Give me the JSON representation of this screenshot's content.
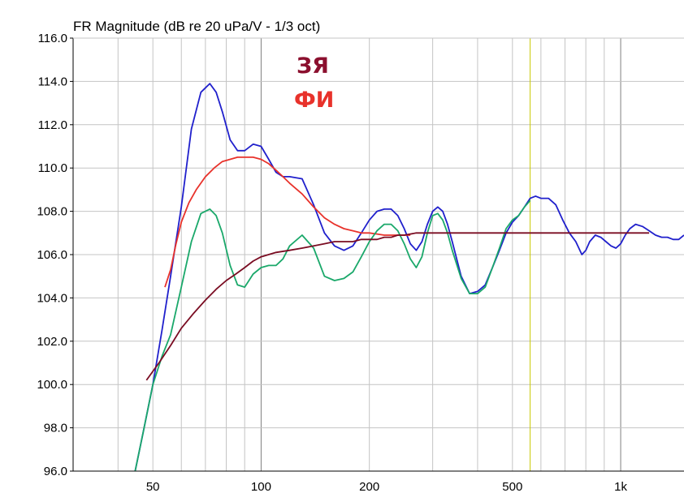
{
  "chart_data": {
    "type": "line",
    "title": "FR Magnitude (dB re 20 uPa/V - 1/3 oct)",
    "xscale": "log",
    "xlim": [
      30,
      1500
    ],
    "ylim": [
      96,
      116
    ],
    "yticks": [
      "116.0",
      "114.0",
      "112.0",
      "110.0",
      "108.0",
      "106.0",
      "104.0",
      "102.0",
      "100.0",
      "98.0",
      "96.0"
    ],
    "xticks": [
      {
        "value": 50,
        "label": "50"
      },
      {
        "value": 100,
        "label": "100"
      },
      {
        "value": 200,
        "label": "200"
      },
      {
        "value": 500,
        "label": "500"
      },
      {
        "value": 1000,
        "label": "1k"
      }
    ],
    "grid": true,
    "marker_line": {
      "x": 560,
      "color": "#c8c800"
    },
    "annotations": [
      {
        "text": "ЗЯ",
        "color": "#8b0f2e"
      },
      {
        "text": "ФИ",
        "color": "#e8322b"
      }
    ],
    "series": [
      {
        "color": "#2020cc",
        "x": [
          44,
          47,
          50,
          53,
          56,
          60,
          64,
          68,
          72,
          75,
          78,
          82,
          86,
          90,
          95,
          100,
          105,
          110,
          115,
          120,
          130,
          140,
          150,
          160,
          170,
          180,
          190,
          200,
          210,
          220,
          230,
          240,
          250,
          260,
          270,
          280,
          290,
          300,
          310,
          320,
          330,
          340,
          360,
          380,
          400,
          420,
          440,
          460,
          480,
          500,
          520,
          540,
          560,
          580,
          600,
          630,
          660,
          690,
          720,
          750,
          780,
          800,
          820,
          850,
          880,
          910,
          940,
          970,
          1000,
          1030,
          1060,
          1100,
          1150,
          1200,
          1250,
          1300,
          1350,
          1400,
          1450,
          1500
        ],
        "y": [
          95.5,
          97.8,
          100.0,
          102.5,
          105.0,
          108.2,
          111.8,
          113.5,
          113.9,
          113.5,
          112.6,
          111.3,
          110.8,
          110.8,
          111.1,
          111.0,
          110.4,
          109.8,
          109.6,
          109.6,
          109.5,
          108.3,
          107.0,
          106.4,
          106.2,
          106.4,
          107.0,
          107.6,
          108.0,
          108.1,
          108.1,
          107.8,
          107.2,
          106.5,
          106.2,
          106.6,
          107.4,
          108.0,
          108.2,
          108.0,
          107.4,
          106.6,
          105.0,
          104.2,
          104.3,
          104.6,
          105.4,
          106.2,
          107.0,
          107.5,
          107.8,
          108.2,
          108.6,
          108.7,
          108.6,
          108.6,
          108.3,
          107.6,
          107.0,
          106.6,
          106.0,
          106.2,
          106.6,
          106.9,
          106.8,
          106.6,
          106.4,
          106.3,
          106.5,
          106.9,
          107.2,
          107.4,
          107.3,
          107.1,
          106.9,
          106.8,
          106.8,
          106.7,
          106.7,
          106.9
        ]
      },
      {
        "color": "#e8322b",
        "x": [
          54,
          56,
          58,
          60,
          63,
          66,
          70,
          74,
          78,
          82,
          86,
          90,
          95,
          100,
          105,
          110,
          115,
          120,
          130,
          140,
          150,
          160,
          170,
          180,
          190,
          200,
          210,
          220,
          230,
          240,
          250,
          260
        ],
        "y": [
          104.5,
          105.3,
          106.5,
          107.5,
          108.4,
          109.0,
          109.6,
          110.0,
          110.3,
          110.4,
          110.5,
          110.5,
          110.5,
          110.4,
          110.2,
          109.9,
          109.6,
          109.3,
          108.8,
          108.2,
          107.7,
          107.4,
          107.2,
          107.1,
          107.0,
          107.0,
          106.95,
          106.9,
          106.9,
          106.9,
          106.9,
          106.9
        ]
      },
      {
        "color": "#1aa86a",
        "x": [
          44,
          47,
          50,
          53,
          56,
          60,
          64,
          68,
          72,
          75,
          78,
          82,
          86,
          90,
          95,
          100,
          105,
          110,
          115,
          120,
          130,
          140,
          150,
          160,
          170,
          180,
          190,
          200,
          210,
          220,
          230,
          240,
          250,
          260,
          270,
          280,
          290,
          300,
          310,
          320,
          330,
          340,
          360,
          380,
          400,
          420,
          440,
          460,
          480,
          500,
          520,
          540,
          560
        ],
        "y": [
          95.5,
          97.8,
          100.0,
          101.3,
          102.3,
          104.5,
          106.6,
          107.9,
          108.1,
          107.8,
          107.0,
          105.5,
          104.6,
          104.5,
          105.1,
          105.4,
          105.5,
          105.5,
          105.8,
          106.4,
          106.9,
          106.3,
          105.0,
          104.8,
          104.9,
          105.2,
          105.9,
          106.6,
          107.1,
          107.4,
          107.4,
          107.1,
          106.5,
          105.8,
          105.4,
          105.9,
          107.0,
          107.8,
          107.9,
          107.6,
          107.0,
          106.2,
          104.9,
          104.2,
          104.2,
          104.5,
          105.4,
          106.3,
          107.2,
          107.6,
          107.8,
          108.2,
          108.5
        ]
      },
      {
        "color": "#7a0c22",
        "x": [
          48,
          52,
          56,
          60,
          65,
          70,
          75,
          80,
          85,
          90,
          95,
          100,
          110,
          120,
          130,
          140,
          150,
          160,
          170,
          180,
          190,
          200,
          210,
          220,
          230,
          240,
          250,
          270,
          300,
          350,
          400,
          450,
          500,
          550,
          600,
          650,
          700,
          800,
          900,
          1000,
          1100,
          1200
        ],
        "y": [
          100.2,
          101.0,
          101.8,
          102.6,
          103.3,
          103.9,
          104.4,
          104.8,
          105.1,
          105.4,
          105.7,
          105.9,
          106.1,
          106.2,
          106.3,
          106.4,
          106.5,
          106.6,
          106.6,
          106.6,
          106.7,
          106.7,
          106.7,
          106.8,
          106.8,
          106.9,
          106.9,
          107.0,
          107.0,
          107.0,
          107.0,
          107.0,
          107.0,
          107.0,
          107.0,
          107.0,
          107.0,
          107.0,
          107.0,
          107.0,
          107.0,
          107.0
        ]
      }
    ]
  }
}
